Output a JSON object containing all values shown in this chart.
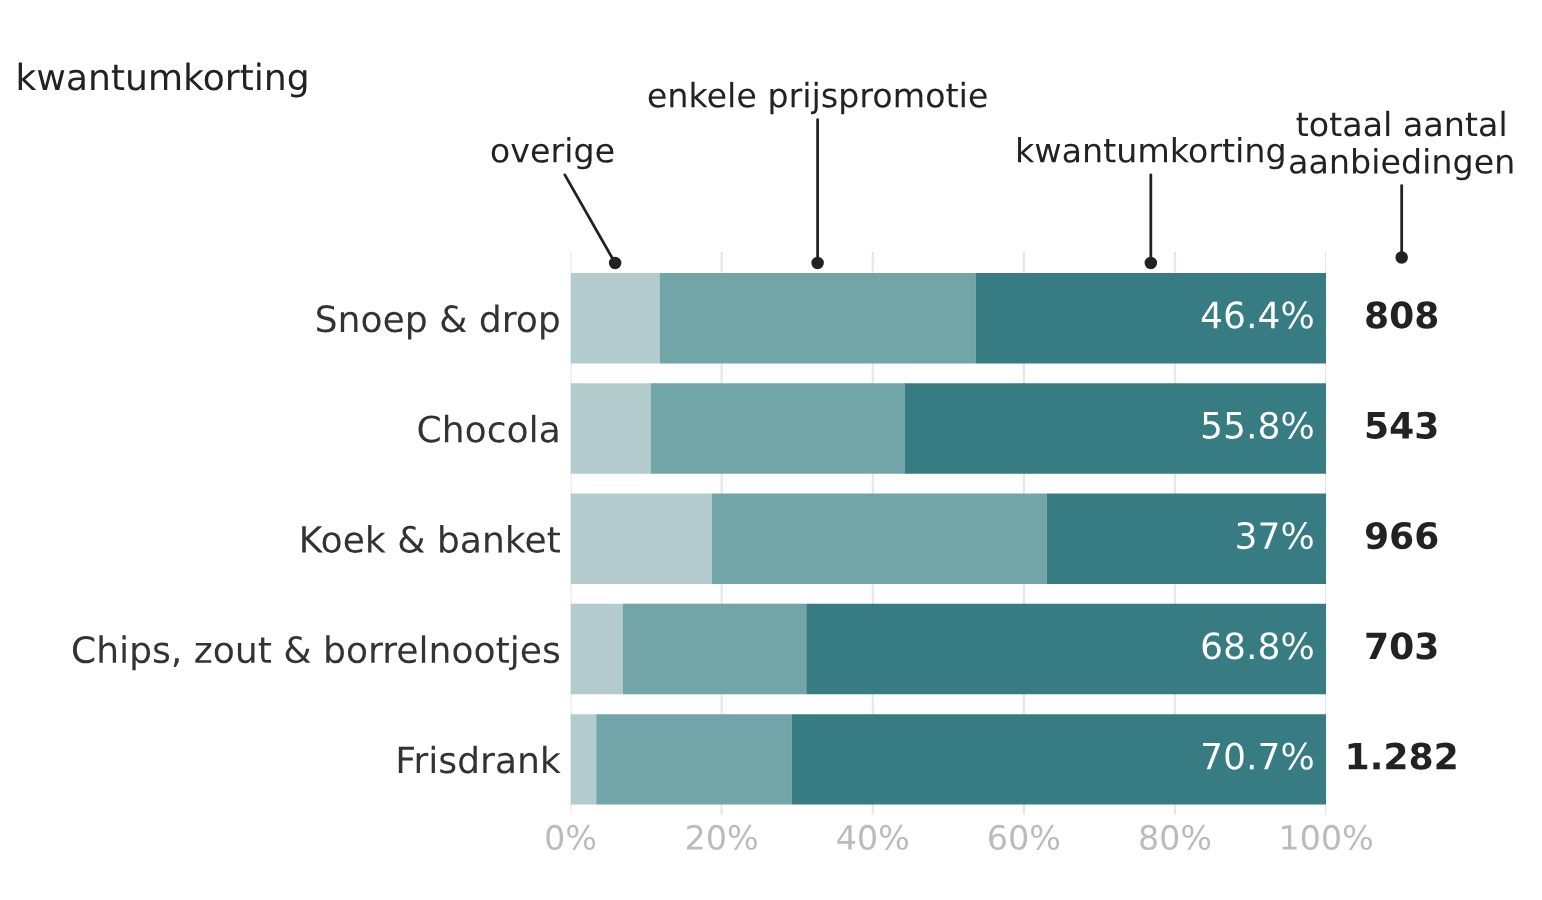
{
  "chart_data": {
    "type": "bar",
    "orientation": "horizontal",
    "stacked": true,
    "title": "kwantumkorting",
    "categories": [
      "Snoep & drop",
      "Chocola",
      "Koek & banket",
      "Chips, zout & borrelnootjes",
      "Frisdrank"
    ],
    "series": [
      {
        "name": "overige",
        "color": "#b3cbcd",
        "values": [
          11.8,
          10.6,
          18.7,
          6.9,
          3.4
        ]
      },
      {
        "name": "enkele prijspromotie",
        "color": "#72a5a8",
        "values": [
          41.8,
          33.6,
          44.3,
          24.3,
          25.9
        ]
      },
      {
        "name": "kwantumkorting",
        "color": "#367c82",
        "values": [
          46.4,
          55.8,
          37,
          68.8,
          70.7
        ],
        "value_labels": [
          "46.4%",
          "55.8%",
          "37%",
          "68.8%",
          "70.7%"
        ]
      }
    ],
    "annotations": [
      "totaal aantal aanbiedingen",
      "808",
      "543",
      "966",
      "703",
      "1.282"
    ],
    "xlim": [
      0,
      100
    ],
    "xticks": [
      {
        "value": 0,
        "label": "0%"
      },
      {
        "value": 20,
        "label": "20%"
      },
      {
        "value": 40,
        "label": "40%"
      },
      {
        "value": 60,
        "label": "60%"
      },
      {
        "value": 80,
        "label": "80%"
      },
      {
        "value": 100,
        "label": "100%"
      }
    ],
    "grid": "x",
    "legend": false
  }
}
